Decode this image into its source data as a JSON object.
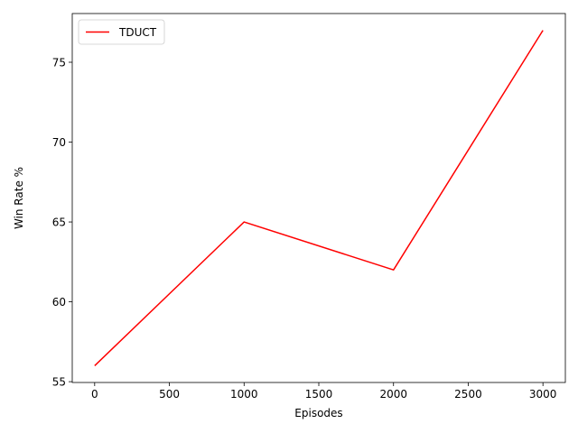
{
  "chart_data": {
    "type": "line",
    "title": "",
    "xlabel": "Episodes",
    "ylabel": "Win Rate %",
    "xlim": [
      -150,
      3150
    ],
    "ylim": [
      54.95,
      78.05
    ],
    "xticks": [
      0,
      500,
      1000,
      1500,
      2000,
      2500,
      3000
    ],
    "yticks": [
      55,
      60,
      65,
      70,
      75
    ],
    "grid": false,
    "legend": "top-left",
    "series": [
      {
        "name": "TDUCT",
        "color": "#ff0000",
        "x": [
          0,
          1000,
          2000,
          3000
        ],
        "y": [
          56,
          65,
          62,
          77
        ]
      }
    ]
  }
}
